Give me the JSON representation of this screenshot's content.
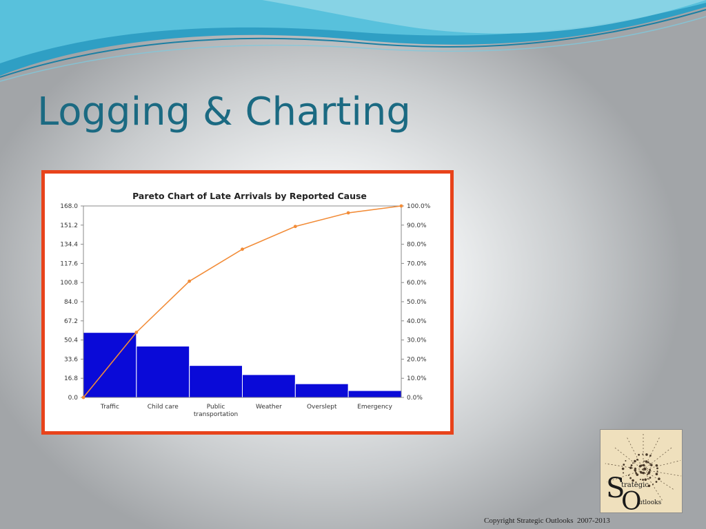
{
  "slide": {
    "title": "Logging & Charting",
    "copyright": "Copyright Strategic Outlooks  2007-2013",
    "colors": {
      "title": "#1b6a82",
      "frame_border": "#e8431b",
      "wave_blue": "#3fb2d3",
      "wave_light": "#8fd6e6"
    }
  },
  "logo": {
    "big_letters": [
      "S",
      "O"
    ],
    "words": [
      "trategic",
      "utlooks"
    ]
  },
  "chart_data": {
    "type": "bar",
    "title": "Pareto Chart of Late Arrivals by Reported Cause",
    "categories": [
      "Traffic",
      "Child care",
      "Public transportation",
      "Weather",
      "Overslept",
      "Emergency"
    ],
    "category_labels": [
      [
        "Traffic"
      ],
      [
        "Child care"
      ],
      [
        "Public",
        "transportation"
      ],
      [
        "Weather"
      ],
      [
        "Overslept"
      ],
      [
        "Emergency"
      ]
    ],
    "values": [
      57,
      45,
      28,
      20,
      12,
      6
    ],
    "cumulative_percent": [
      0.0,
      34.0,
      60.7,
      77.4,
      89.3,
      96.4,
      100.0
    ],
    "ylim": [
      0,
      168
    ],
    "y2lim": [
      0,
      100
    ],
    "y_ticks": [
      "0.0",
      "16.8",
      "33.6",
      "50.4",
      "67.2",
      "84.0",
      "100.8",
      "117.6",
      "134.4",
      "151.2",
      "168.0"
    ],
    "y2_ticks": [
      "0.0%",
      "10.0%",
      "20.0%",
      "30.0%",
      "40.0%",
      "50.0%",
      "60.0%",
      "70.0%",
      "80.0%",
      "90.0%",
      "100.0%"
    ],
    "bar_color": "#0a0ad8",
    "line_color": "#f28c38",
    "grid": false
  }
}
